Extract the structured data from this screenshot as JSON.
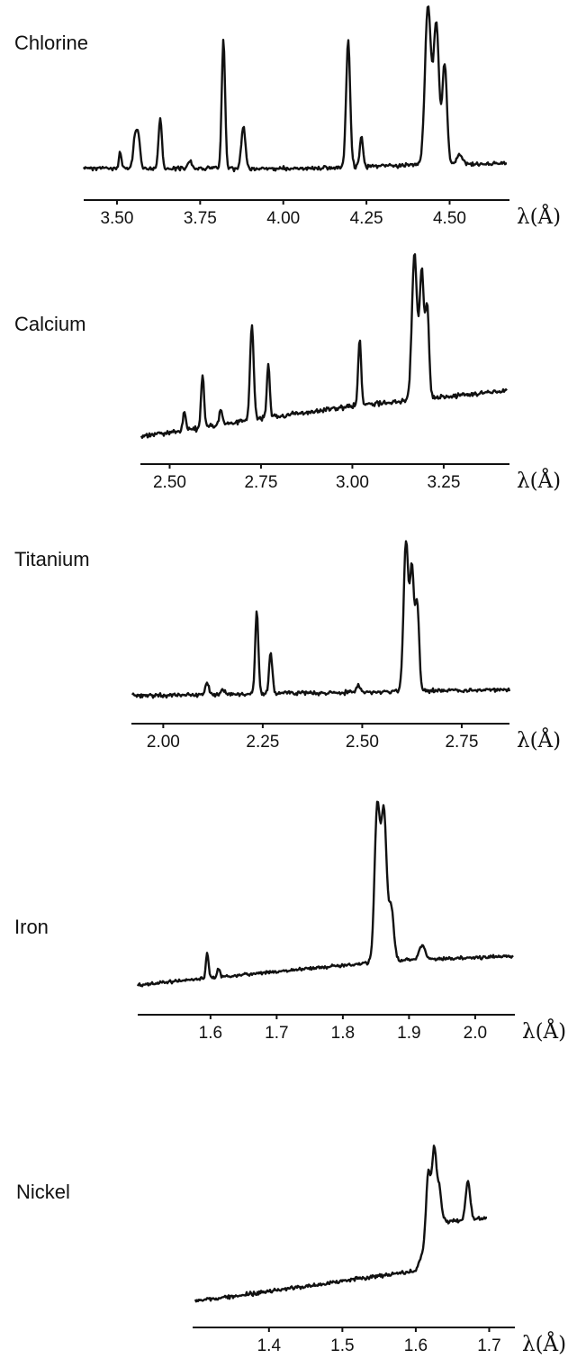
{
  "chart_data": [
    {
      "type": "line",
      "title": "Chlorine",
      "xlabel": "λ(Å)",
      "ylabel": "",
      "xlim": [
        3.4,
        4.68
      ],
      "ticks": [
        "3.50",
        "3.75",
        "4.00",
        "4.25",
        "4.50"
      ],
      "grid": false,
      "baseline": [
        [
          3.4,
          4.0
        ],
        [
          4.1,
          4.0
        ],
        [
          4.3,
          5.0
        ],
        [
          4.68,
          6.0
        ]
      ],
      "peaks": [
        {
          "x": 3.51,
          "h": 6,
          "w": 0.004
        },
        {
          "x": 3.555,
          "h": 13,
          "w": 0.006
        },
        {
          "x": 3.565,
          "h": 10,
          "w": 0.005
        },
        {
          "x": 3.63,
          "h": 20,
          "w": 0.005
        },
        {
          "x": 3.72,
          "h": 3,
          "w": 0.006
        },
        {
          "x": 3.82,
          "h": 51,
          "w": 0.005
        },
        {
          "x": 3.88,
          "h": 17,
          "w": 0.006
        },
        {
          "x": 4.195,
          "h": 50,
          "w": 0.006
        },
        {
          "x": 4.235,
          "h": 12,
          "w": 0.005
        },
        {
          "x": 4.435,
          "h": 63,
          "w": 0.009
        },
        {
          "x": 4.46,
          "h": 56,
          "w": 0.008
        },
        {
          "x": 4.485,
          "h": 40,
          "w": 0.007
        },
        {
          "x": 4.53,
          "h": 4,
          "w": 0.008
        }
      ]
    },
    {
      "type": "line",
      "title": "Calcium",
      "xlabel": "λ(Å)",
      "ylabel": "",
      "xlim": [
        2.42,
        3.43
      ],
      "ticks": [
        "2.50",
        "2.75",
        "3.00",
        "3.25"
      ],
      "grid": false,
      "baseline": [
        [
          2.42,
          3.0
        ],
        [
          2.7,
          10.0
        ],
        [
          3.0,
          17.0
        ],
        [
          3.43,
          24.0
        ]
      ],
      "peaks": [
        {
          "x": 2.54,
          "h": 8,
          "w": 0.004
        },
        {
          "x": 2.59,
          "h": 23,
          "w": 0.004
        },
        {
          "x": 2.64,
          "h": 7,
          "w": 0.004
        },
        {
          "x": 2.725,
          "h": 43,
          "w": 0.005
        },
        {
          "x": 2.77,
          "h": 24,
          "w": 0.004
        },
        {
          "x": 3.02,
          "h": 30,
          "w": 0.004
        },
        {
          "x": 3.17,
          "h": 66,
          "w": 0.007
        },
        {
          "x": 3.19,
          "h": 58,
          "w": 0.006
        },
        {
          "x": 3.205,
          "h": 40,
          "w": 0.005
        }
      ]
    },
    {
      "type": "line",
      "title": "Titanium",
      "xlabel": "λ(Å)",
      "ylabel": "",
      "xlim": [
        1.92,
        2.87
      ],
      "ticks": [
        "2.00",
        "2.25",
        "2.50",
        "2.75"
      ],
      "grid": false,
      "baseline": [
        [
          1.92,
          3.0
        ],
        [
          2.3,
          4.5
        ],
        [
          2.6,
          5.5
        ],
        [
          2.87,
          6.5
        ]
      ],
      "peaks": [
        {
          "x": 2.11,
          "h": 7,
          "w": 0.004
        },
        {
          "x": 2.15,
          "h": 3,
          "w": 0.004
        },
        {
          "x": 2.235,
          "h": 47,
          "w": 0.004
        },
        {
          "x": 2.27,
          "h": 23,
          "w": 0.004
        },
        {
          "x": 2.49,
          "h": 4,
          "w": 0.004
        },
        {
          "x": 2.61,
          "h": 86,
          "w": 0.006
        },
        {
          "x": 2.625,
          "h": 68,
          "w": 0.005
        },
        {
          "x": 2.638,
          "h": 50,
          "w": 0.005
        }
      ]
    },
    {
      "type": "line",
      "title": "Iron",
      "xlabel": "λ(Å)",
      "ylabel": "",
      "xlim": [
        1.49,
        2.06
      ],
      "ticks": [
        "1.6",
        "1.7",
        "1.8",
        "1.9",
        "2.0"
      ],
      "grid": false,
      "baseline": [
        [
          1.49,
          4.0
        ],
        [
          1.8,
          15.0
        ],
        [
          1.9,
          18.0
        ],
        [
          2.06,
          20.0
        ]
      ],
      "peaks": [
        {
          "x": 1.595,
          "h": 14,
          "w": 0.002
        },
        {
          "x": 1.612,
          "h": 5,
          "w": 0.002
        },
        {
          "x": 1.852,
          "h": 86,
          "w": 0.004
        },
        {
          "x": 1.862,
          "h": 82,
          "w": 0.004
        },
        {
          "x": 1.873,
          "h": 30,
          "w": 0.004
        },
        {
          "x": 1.92,
          "h": 8,
          "w": 0.004
        }
      ]
    },
    {
      "type": "line",
      "title": "Nickel",
      "xlabel": "λ(Å)",
      "ylabel": "",
      "xlim": [
        1.296,
        1.735
      ],
      "ticks": [
        "1.4",
        "1.5",
        "1.6",
        "1.7"
      ],
      "grid": false,
      "baseline": [
        [
          1.296,
          3.0
        ],
        [
          1.6,
          22.0
        ],
        [
          1.625,
          52.0
        ],
        [
          1.735,
          56.0
        ]
      ],
      "peaks": [
        {
          "x": 1.617,
          "h": 40,
          "w": 0.003
        },
        {
          "x": 1.625,
          "h": 45,
          "w": 0.003
        },
        {
          "x": 1.632,
          "h": 20,
          "w": 0.003
        },
        {
          "x": 1.671,
          "h": 24,
          "w": 0.003
        }
      ]
    }
  ]
}
